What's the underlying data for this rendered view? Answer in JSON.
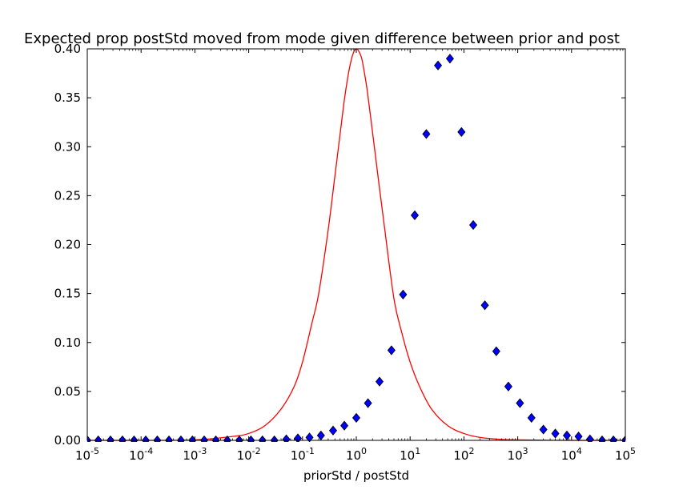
{
  "chart_data": {
    "type": "line",
    "title": "Expected prop postStd moved from mode given difference between prior and post",
    "xlabel": "priorStd / postStd",
    "ylabel": "",
    "xscale": "log",
    "xlim": [
      1e-05,
      100000
    ],
    "ylim": [
      0.0,
      0.4
    ],
    "grid": false,
    "x_ticks": [
      {
        "value": 1e-05,
        "base": "10",
        "exp": "-5"
      },
      {
        "value": 0.0001,
        "base": "10",
        "exp": "-4"
      },
      {
        "value": 0.001,
        "base": "10",
        "exp": "-3"
      },
      {
        "value": 0.01,
        "base": "10",
        "exp": "-2"
      },
      {
        "value": 0.1,
        "base": "10",
        "exp": "-1"
      },
      {
        "value": 1,
        "base": "10",
        "exp": "0"
      },
      {
        "value": 10,
        "base": "10",
        "exp": "1"
      },
      {
        "value": 100,
        "base": "10",
        "exp": "2"
      },
      {
        "value": 1000,
        "base": "10",
        "exp": "3"
      },
      {
        "value": 10000,
        "base": "10",
        "exp": "4"
      },
      {
        "value": 100000,
        "base": "10",
        "exp": "5"
      }
    ],
    "y_ticks": [
      {
        "value": 0.0,
        "label": "0.00"
      },
      {
        "value": 0.05,
        "label": "0.05"
      },
      {
        "value": 0.1,
        "label": "0.10"
      },
      {
        "value": 0.15,
        "label": "0.15"
      },
      {
        "value": 0.2,
        "label": "0.20"
      },
      {
        "value": 0.25,
        "label": "0.25"
      },
      {
        "value": 0.3,
        "label": "0.30"
      },
      {
        "value": 0.35,
        "label": "0.35"
      },
      {
        "value": 0.4,
        "label": "0.40"
      }
    ],
    "series": [
      {
        "style": "line",
        "color": "#ff0000",
        "x": [
          1e-05,
          0.0001,
          0.001,
          0.005,
          0.01,
          0.02,
          0.04,
          0.07,
          0.1,
          0.15,
          0.2,
          0.3,
          0.4,
          0.5,
          0.6,
          0.7,
          0.8,
          0.9,
          1.0,
          1.1,
          1.25,
          1.4,
          1.6,
          2.0,
          2.5,
          3.3,
          5.0,
          7.0,
          10,
          15,
          25,
          50,
          100,
          200,
          500,
          1000,
          10000,
          100000
        ],
        "y": [
          0.0,
          0.0,
          0.0005,
          0.004,
          0.007,
          0.015,
          0.032,
          0.055,
          0.08,
          0.12,
          0.15,
          0.215,
          0.27,
          0.313,
          0.348,
          0.372,
          0.388,
          0.397,
          0.4,
          0.398,
          0.391,
          0.377,
          0.357,
          0.315,
          0.272,
          0.22,
          0.145,
          0.11,
          0.08,
          0.055,
          0.032,
          0.015,
          0.007,
          0.003,
          0.001,
          0.0005,
          0.0,
          0.0
        ]
      },
      {
        "style": "markers",
        "marker": "diamond",
        "color": "#0000ff",
        "x": [
          1e-05,
          1.6e-05,
          2.7e-05,
          4.5e-05,
          7.4e-05,
          0.000122,
          0.0002,
          0.00033,
          0.00055,
          0.0009,
          0.00149,
          0.00245,
          0.004,
          0.0067,
          0.011,
          0.018,
          0.03,
          0.05,
          0.082,
          0.135,
          0.22,
          0.37,
          0.6,
          1.0,
          1.65,
          2.7,
          4.5,
          7.4,
          12.2,
          20,
          33,
          55,
          90,
          149,
          245,
          400,
          670,
          1100,
          1800,
          3000,
          5000,
          8200,
          13500,
          22000,
          37000,
          60000,
          100000
        ],
        "y": [
          0.0,
          0.0,
          0.0,
          0.0,
          0.0,
          0.0,
          0.0,
          0.0,
          0.0,
          0.0,
          0.0,
          0.0,
          0.0,
          0.0,
          0.0,
          0.0,
          0.0,
          0.001,
          0.002,
          0.003,
          0.005,
          0.01,
          0.015,
          0.023,
          0.038,
          0.06,
          0.092,
          0.149,
          0.23,
          0.313,
          0.383,
          0.39,
          0.315,
          0.22,
          0.138,
          0.091,
          0.055,
          0.038,
          0.023,
          0.011,
          0.007,
          0.005,
          0.004,
          0.001,
          0.0,
          0.0,
          0.0
        ]
      }
    ]
  }
}
